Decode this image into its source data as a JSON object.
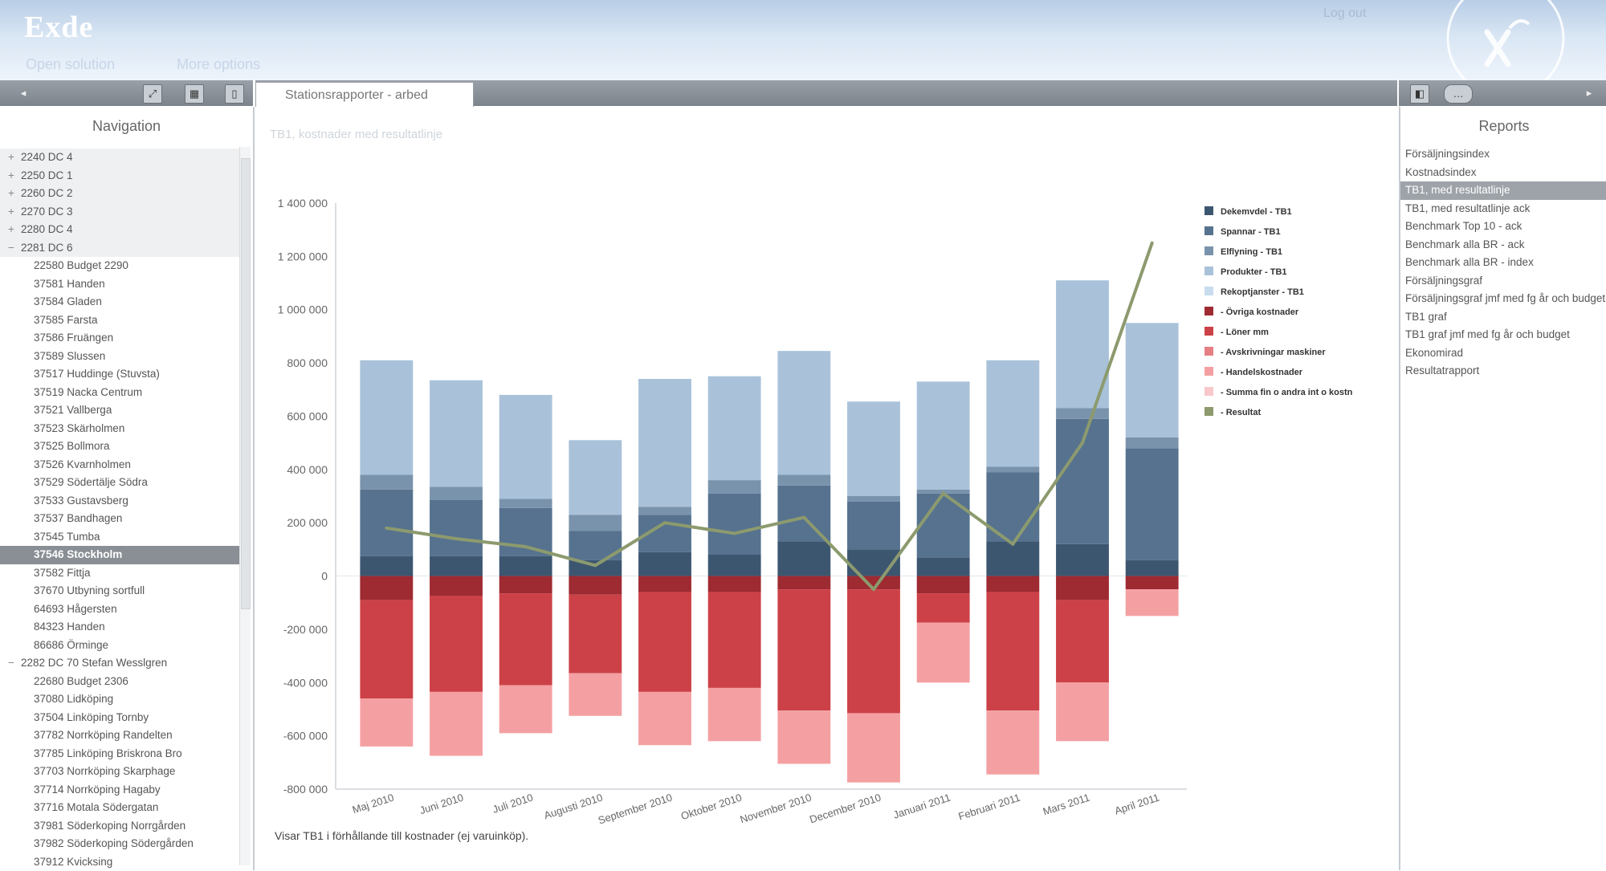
{
  "app": {
    "title": "Exde",
    "user": "",
    "logout": "Log out"
  },
  "menu": {
    "open_solution": "Open solution",
    "more_options": "More options"
  },
  "tab": {
    "label": "Stationsrapporter - arbed"
  },
  "navigation": {
    "title": "Navigation",
    "items": [
      {
        "label": "2240 DC 4",
        "expand": "+",
        "group": true
      },
      {
        "label": "2250 DC 1",
        "expand": "+",
        "group": true
      },
      {
        "label": "2260 DC 2",
        "expand": "+",
        "group": true
      },
      {
        "label": "2270 DC 3",
        "expand": "+",
        "group": true
      },
      {
        "label": "2280 DC 4",
        "expand": "+",
        "group": true
      },
      {
        "label": "2281 DC 6",
        "expand": "−",
        "group": true
      },
      {
        "label": "22580 Budget 2290",
        "expand": "",
        "group": false
      },
      {
        "label": "37581 Handen",
        "expand": "",
        "group": false
      },
      {
        "label": "37584 Gladen",
        "expand": "",
        "group": false
      },
      {
        "label": "37585 Farsta",
        "expand": "",
        "group": false
      },
      {
        "label": "37586 Fruängen",
        "expand": "",
        "group": false
      },
      {
        "label": "37589 Slussen",
        "expand": "",
        "group": false
      },
      {
        "label": "37517 Huddinge (Stuvsta)",
        "expand": "",
        "group": false
      },
      {
        "label": "37519 Nacka Centrum",
        "expand": "",
        "group": false
      },
      {
        "label": "37521 Vallberga",
        "expand": "",
        "group": false
      },
      {
        "label": "37523 Skärholmen",
        "expand": "",
        "group": false
      },
      {
        "label": "37525 Bollmora",
        "expand": "",
        "group": false
      },
      {
        "label": "37526 Kvarnholmen",
        "expand": "",
        "group": false
      },
      {
        "label": "37529 Södertälje Södra",
        "expand": "",
        "group": false
      },
      {
        "label": "37533 Gustavsberg",
        "expand": "",
        "group": false
      },
      {
        "label": "37537 Bandhagen",
        "expand": "",
        "group": false
      },
      {
        "label": "37545 Tumba",
        "expand": "",
        "group": false
      },
      {
        "label": "37546 Stockholm",
        "expand": "",
        "group": false,
        "selected": true
      },
      {
        "label": "37582 Fittja",
        "expand": "",
        "group": false
      },
      {
        "label": "37670 Utbyning sortfull",
        "expand": "",
        "group": false
      },
      {
        "label": "64693 Hågersten",
        "expand": "",
        "group": false
      },
      {
        "label": "84323 Handen",
        "expand": "",
        "group": false
      },
      {
        "label": "86686 Örminge",
        "expand": "",
        "group": false
      },
      {
        "label": "2282 DC 70 Stefan Wesslgren",
        "expand": "−",
        "group": false
      },
      {
        "label": "22680 Budget 2306",
        "expand": "",
        "group": false
      },
      {
        "label": "37080 Lidköping",
        "expand": "",
        "group": false
      },
      {
        "label": "37504 Linköping Tornby",
        "expand": "",
        "group": false
      },
      {
        "label": "37782 Norrköping Randelten",
        "expand": "",
        "group": false
      },
      {
        "label": "37785 Linköping Briskrona Bro",
        "expand": "",
        "group": false
      },
      {
        "label": "37703 Norrköping Skarphage",
        "expand": "",
        "group": false
      },
      {
        "label": "37714 Norrköping Hagaby",
        "expand": "",
        "group": false
      },
      {
        "label": "37716 Motala Södergatan",
        "expand": "",
        "group": false
      },
      {
        "label": "37981 Söderkoping Norrgården",
        "expand": "",
        "group": false
      },
      {
        "label": "37982 Söderkoping Södergården",
        "expand": "",
        "group": false
      },
      {
        "label": "37912 Kvicksing",
        "expand": "",
        "group": false
      }
    ]
  },
  "main": {
    "subtitle": "TB1, kostnader med resultatlinje",
    "footnote": "Visar TB1 i förhållande till kostnader (ej varuinköp)."
  },
  "reports": {
    "title": "Reports",
    "items": [
      {
        "label": "Försäljningsindex"
      },
      {
        "label": "Kostnadsindex"
      },
      {
        "label": "TB1, med resultatlinje",
        "selected": true
      },
      {
        "label": "TB1, med resultatlinje ack"
      },
      {
        "label": "Benchmark Top 10 - ack"
      },
      {
        "label": "Benchmark alla BR - ack"
      },
      {
        "label": "Benchmark alla BR - index"
      },
      {
        "label": "Försäljningsgraf"
      },
      {
        "label": "Försäljningsgraf jmf med fg år och budget"
      },
      {
        "label": "TB1 graf"
      },
      {
        "label": "TB1 graf jmf med fg år och budget"
      },
      {
        "label": "Ekonomirad"
      },
      {
        "label": "Resultatrapport"
      }
    ]
  },
  "colors": {
    "header_top": "#b8cde6",
    "toolbar": "#8c9299",
    "selection": "#8a8f95",
    "line_series": "#8c9a6e"
  },
  "chart_data": {
    "type": "bar",
    "stacked": true,
    "title": "",
    "xlabel": "",
    "ylabel": "",
    "ylim": [
      -800000,
      1400000
    ],
    "ytick_labels": [
      "1 400 000",
      "1 200 000",
      "1 000 000",
      "800 000",
      "600 000",
      "400 000",
      "200 000",
      "0",
      "-200 000",
      "-400 000",
      "-600 000",
      "-800 000"
    ],
    "categories": [
      "Maj 2010",
      "Juni 2010",
      "Juli 2010",
      "Augusti 2010",
      "September 2010",
      "Oktober 2010",
      "November 2010",
      "December 2010",
      "Januari 2011",
      "Februari 2011",
      "Mars 2011",
      "April 2011"
    ],
    "legend_position": "right",
    "positive_series": [
      {
        "name": "Dekemvdel - TB1",
        "color": "#3d5670",
        "values": [
          75000,
          75000,
          75000,
          60000,
          90000,
          80000,
          130000,
          100000,
          70000,
          130000,
          120000,
          60000
        ]
      },
      {
        "name": "Spannar - TB1",
        "color": "#56728f",
        "values": [
          250000,
          210000,
          180000,
          110000,
          140000,
          230000,
          210000,
          180000,
          240000,
          260000,
          470000,
          420000
        ]
      },
      {
        "name": "Elflyning - TB1",
        "color": "#7a93ac",
        "values": [
          55000,
          50000,
          35000,
          60000,
          30000,
          50000,
          40000,
          20000,
          15000,
          20000,
          40000,
          40000
        ]
      },
      {
        "name": "Produkter - TB1",
        "color": "#a9c2da",
        "values": [
          430000,
          400000,
          390000,
          280000,
          480000,
          390000,
          465000,
          355000,
          405000,
          400000,
          480000,
          430000
        ]
      },
      {
        "name": "Rekoptjanster - TB1",
        "color": "#c8dced",
        "values": [
          0,
          0,
          0,
          0,
          0,
          0,
          0,
          0,
          0,
          0,
          0,
          0
        ]
      }
    ],
    "negative_series": [
      {
        "name": "- Övriga kostnader",
        "color": "#9e2a32",
        "values": [
          -90000,
          -75000,
          -65000,
          -70000,
          -60000,
          -60000,
          -50000,
          -50000,
          -65000,
          -60000,
          -90000,
          -50000
        ]
      },
      {
        "name": "- Löner mm",
        "color": "#cc4147",
        "values": [
          -370000,
          -360000,
          -345000,
          -295000,
          -375000,
          -360000,
          -455000,
          -465000,
          -110000,
          -445000,
          -310000,
          0
        ]
      },
      {
        "name": "- Avskrivningar maskiner",
        "color": "#e57f84",
        "values": [
          0,
          0,
          0,
          0,
          0,
          0,
          0,
          0,
          0,
          0,
          0,
          0
        ]
      },
      {
        "name": "- Handelskostnader",
        "color": "#f4a0a3",
        "values": [
          -180000,
          -240000,
          -180000,
          -160000,
          -200000,
          -200000,
          -200000,
          -260000,
          -225000,
          -240000,
          -220000,
          -100000
        ]
      },
      {
        "name": "- Summa fin o andra int o kostn",
        "color": "#f8c8ca",
        "values": [
          0,
          0,
          0,
          0,
          0,
          0,
          0,
          0,
          0,
          0,
          0,
          0
        ]
      }
    ],
    "line_series": {
      "name": "- Resultat",
      "color": "#8c9a6e",
      "values": [
        180000,
        140000,
        110000,
        40000,
        200000,
        160000,
        220000,
        -50000,
        310000,
        120000,
        500000,
        1250000
      ]
    }
  }
}
